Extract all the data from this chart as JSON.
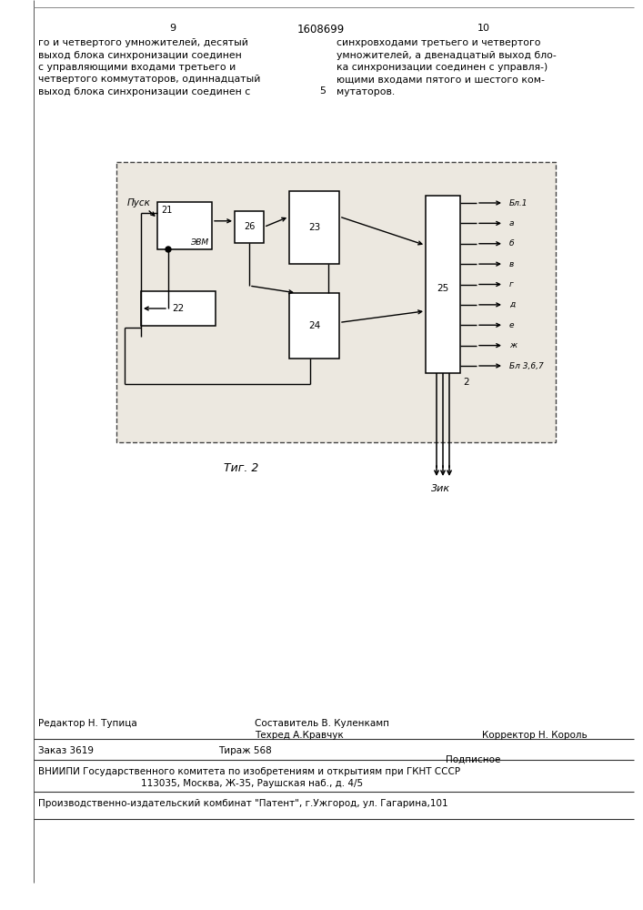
{
  "page_number_left": "9",
  "page_number_center": "1608699",
  "page_number_right": "10",
  "text_left_lines": [
    "го и четвертого умножителей, десятый",
    "выход блока синхронизации соединен",
    "с управляющими входами третьего и",
    "четвертого коммутаторов, одиннадцатый",
    "выход блока синхронизации соединен с"
  ],
  "text_right_lines": [
    "синхровходами третьего и четвертого",
    "умножителей, а двенадцатый выход бло-",
    "ка синхронизации соединен с управля-)",
    "ющими входами пятого и шестого ком-",
    "мутаторов."
  ],
  "center_number": "5",
  "fig_label": "Τиг. 2",
  "zik_label": "3ик",
  "footer_editor": "Редактор Н. Тупица",
  "footer_sostavitel": "Составитель В. Куленкамп",
  "footer_techred": "Техред А.Кравчук",
  "footer_corrector": "Корректор Н. Король",
  "footer_order": "Заказ 3619",
  "footer_tirazh": "Тираж 568",
  "footer_podpisnoe": "Подписное",
  "footer_vniip": "ВНИИПИ Государственного комитета по изобретениям и открытиям при ГКНТ СССР",
  "footer_address": "113035, Москва, Ж-35, Раушская наб., д. 4/5",
  "footer_publisher": "Производственно-издательский комбинат \"Патент\", г.Ужгород, ул. Гагарина,101",
  "output_labels": [
    "Бл.1",
    "а",
    "б",
    "в",
    "г",
    "д",
    "е",
    "ж",
    "Бл 3,6,7"
  ]
}
